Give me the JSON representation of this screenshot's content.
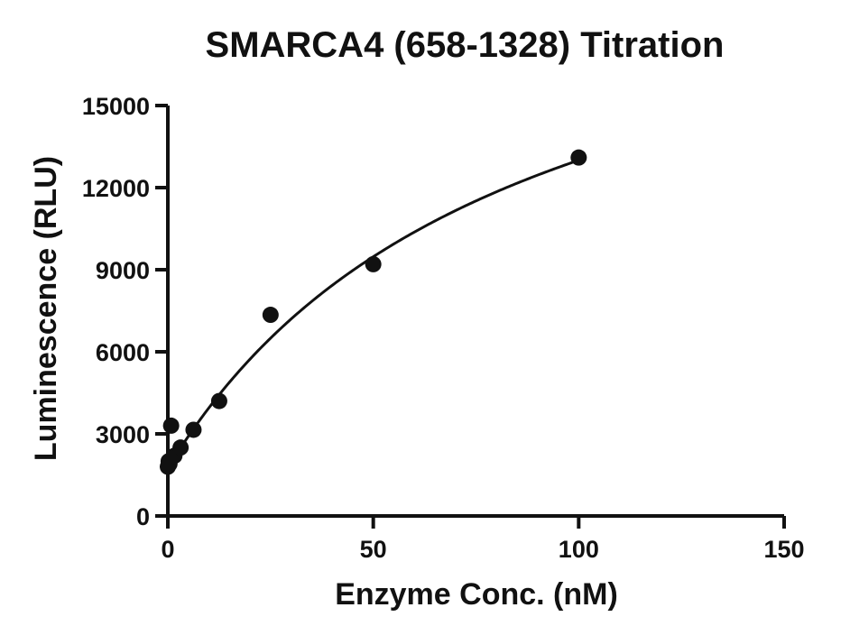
{
  "chart_data": {
    "type": "scatter",
    "title": "SMARCA4 (658-1328) Titration",
    "xlabel": "Enzyme Conc. (nM)",
    "ylabel": "Luminescence (RLU)",
    "xlim": [
      0,
      150
    ],
    "ylim": [
      0,
      15000
    ],
    "xticks": [
      0,
      50,
      100,
      150
    ],
    "yticks": [
      0,
      3000,
      6000,
      9000,
      12000,
      15000
    ],
    "grid": false,
    "legend": "none",
    "series": [
      {
        "points": [
          {
            "x": 0,
            "y": 1800
          },
          {
            "x": 0.2,
            "y": 2000
          },
          {
            "x": 0.4,
            "y": 1900
          },
          {
            "x": 0.8,
            "y": 3300
          },
          {
            "x": 1.6,
            "y": 2200
          },
          {
            "x": 3.1,
            "y": 2500
          },
          {
            "x": 6.25,
            "y": 3150
          },
          {
            "x": 12.5,
            "y": 4200
          },
          {
            "x": 25,
            "y": 7350
          },
          {
            "x": 50,
            "y": 9200
          },
          {
            "x": 100,
            "y": 13100
          }
        ],
        "fit": {
          "type": "hyperbolic",
          "baseline": 1750,
          "bmax": 20700,
          "kd": 84
        }
      }
    ],
    "color": "#111111"
  }
}
